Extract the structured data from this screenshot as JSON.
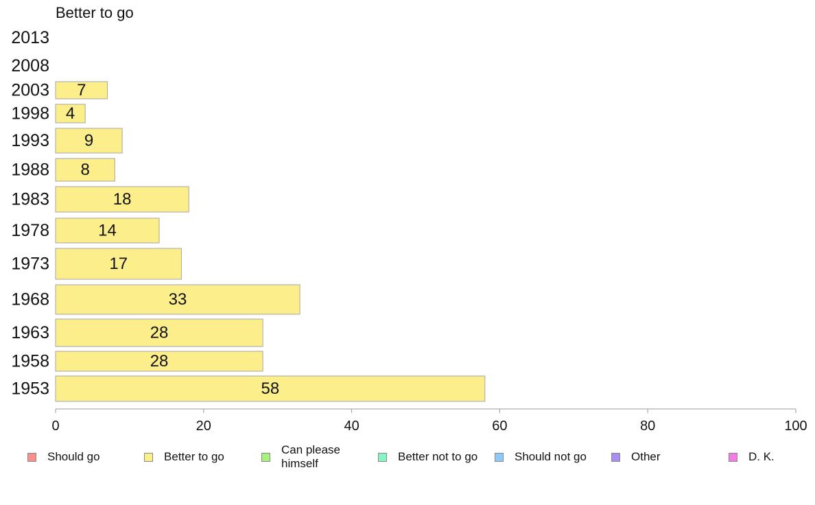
{
  "chart_data": {
    "type": "bar",
    "orientation": "horizontal",
    "title": "Better to go",
    "categories": [
      "1953",
      "1958",
      "1963",
      "1968",
      "1973",
      "1978",
      "1983",
      "1988",
      "1993",
      "1998",
      "2003",
      "2008",
      "2013"
    ],
    "series": [
      {
        "name": "Better to go",
        "color": "#fdee8c",
        "values": [
          58,
          28,
          28,
          33,
          17,
          14,
          18,
          8,
          9,
          4,
          7,
          null,
          null
        ]
      }
    ],
    "xlim": [
      0,
      100
    ],
    "xticks": [
      0,
      20,
      40,
      60,
      80,
      100
    ],
    "grid": false,
    "legend_position": "bottom",
    "legend": [
      {
        "label": "Should go",
        "color": "#f98f8f"
      },
      {
        "label": "Better to go",
        "color": "#fdee8c"
      },
      {
        "label": "Can please himself",
        "color": "#a6f27f"
      },
      {
        "label": "Better not to go",
        "color": "#86f5c6"
      },
      {
        "label": "Should not go",
        "color": "#8fc9f7"
      },
      {
        "label": "Other",
        "color": "#a88ef2"
      },
      {
        "label": "D. K.",
        "color": "#f27de6"
      }
    ]
  }
}
